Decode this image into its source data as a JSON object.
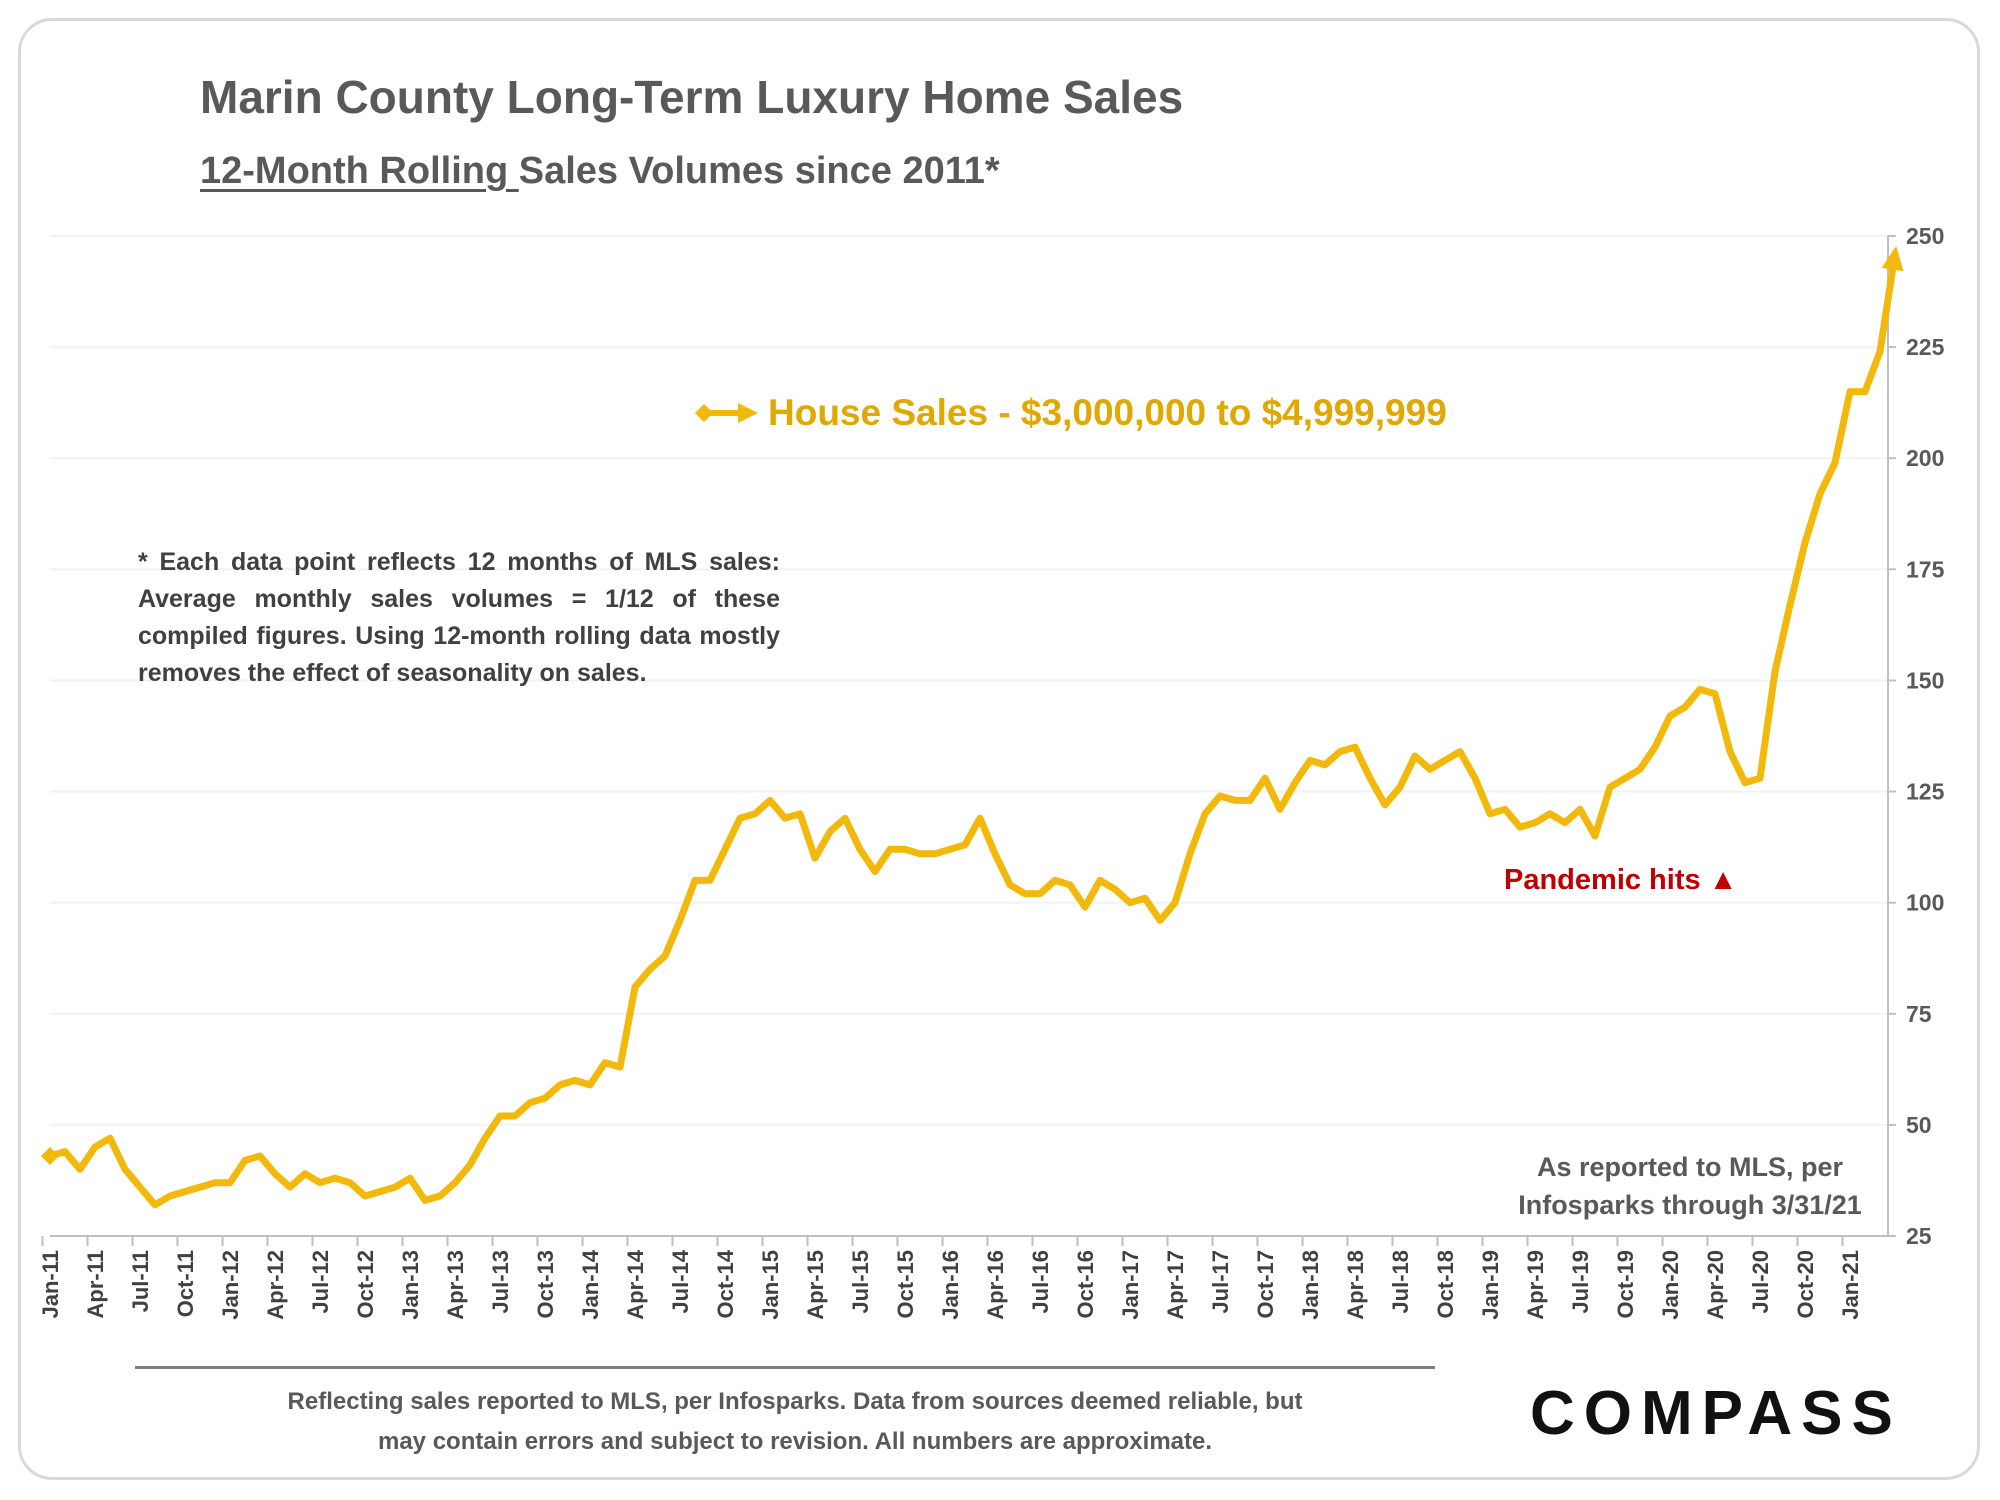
{
  "page": {
    "title": "Marin County Long-Term Luxury Home Sales",
    "subtitle_underlined": "12-Month Rolling ",
    "subtitle_rest": "Sales Volumes since 2011*",
    "note": "* Each data point reflects 12 months of MLS sales: Average monthly sales volumes = 1/12 of these compiled figures. Using 12-month rolling data mostly removes the effect of seasonality on sales.",
    "annotation_pandemic": "Pandemic hits",
    "annotation_pandemic_symbol": "▲",
    "source_line1": "As reported to MLS, per",
    "source_line2": "Infosparks through 3/31/21",
    "footer_line1": "Reflecting sales reported to MLS, per Infosparks. Data from sources deemed reliable, but",
    "footer_line2": "may contain errors and subject to revision. All numbers are approximate.",
    "logo_text": "COMPASS"
  },
  "colors": {
    "series": "#F2B90C",
    "legend_text": "#E0A800",
    "annotation": "#C00000",
    "text": "#595959",
    "gridline": "#F2F2F2"
  },
  "chart_data": {
    "type": "line",
    "title": "Marin County Long-Term Luxury Home Sales",
    "subtitle": "12-Month Rolling Sales Volumes since 2011*",
    "xlabel": "",
    "ylabel": "",
    "ylim": [
      25,
      250
    ],
    "yticks": [
      "250",
      "225",
      "200",
      "175",
      "150",
      "125",
      "100",
      "75",
      "50",
      "25"
    ],
    "y_axis_position": "right",
    "grid": true,
    "legend_position": "top-center",
    "x_start": "Jan-11",
    "x_end": "Mar-21",
    "xtick_labels": [
      "Jan-11",
      "Apr-11",
      "Jul-11",
      "Oct-11",
      "Jan-12",
      "Apr-12",
      "Jul-12",
      "Oct-12",
      "Jan-13",
      "Apr-13",
      "Jul-13",
      "Oct-13",
      "Jan-14",
      "Apr-14",
      "Jul-14",
      "Oct-14",
      "Jan-15",
      "Apr-15",
      "Jul-15",
      "Oct-15",
      "Jan-16",
      "Apr-16",
      "Jul-16",
      "Oct-16",
      "Jan-17",
      "Apr-17",
      "Jul-17",
      "Oct-17",
      "Jan-18",
      "Apr-18",
      "Jul-18",
      "Oct-18",
      "Jan-19",
      "Apr-19",
      "Jul-19",
      "Oct-19",
      "Jan-20",
      "Apr-20",
      "Jul-20",
      "Oct-20",
      "Jan-21"
    ],
    "series": [
      {
        "name": "House Sales - $3,000,000 to $4,999,999",
        "values": [
          43,
          44,
          40,
          45,
          47,
          40,
          36,
          32,
          34,
          35,
          36,
          37,
          37,
          42,
          43,
          39,
          36,
          39,
          37,
          38,
          37,
          34,
          35,
          36,
          38,
          33,
          34,
          37,
          41,
          47,
          52,
          52,
          55,
          56,
          59,
          60,
          59,
          64,
          63,
          81,
          85,
          88,
          96,
          105,
          105,
          112,
          119,
          120,
          123,
          119,
          120,
          110,
          116,
          119,
          112,
          107,
          112,
          112,
          111,
          111,
          112,
          113,
          119,
          111,
          104,
          102,
          102,
          105,
          104,
          99,
          105,
          103,
          100,
          101,
          96,
          100,
          111,
          120,
          124,
          123,
          123,
          128,
          121,
          127,
          132,
          131,
          134,
          135,
          128,
          122,
          126,
          133,
          130,
          132,
          134,
          128,
          120,
          121,
          117,
          118,
          120,
          118,
          121,
          115,
          126,
          128,
          130,
          135,
          142,
          144,
          148,
          147,
          134,
          127,
          128,
          152,
          167,
          181,
          192,
          199,
          215,
          215,
          224,
          246
        ]
      }
    ],
    "annotations": [
      "Pandemic hits ▲"
    ]
  }
}
